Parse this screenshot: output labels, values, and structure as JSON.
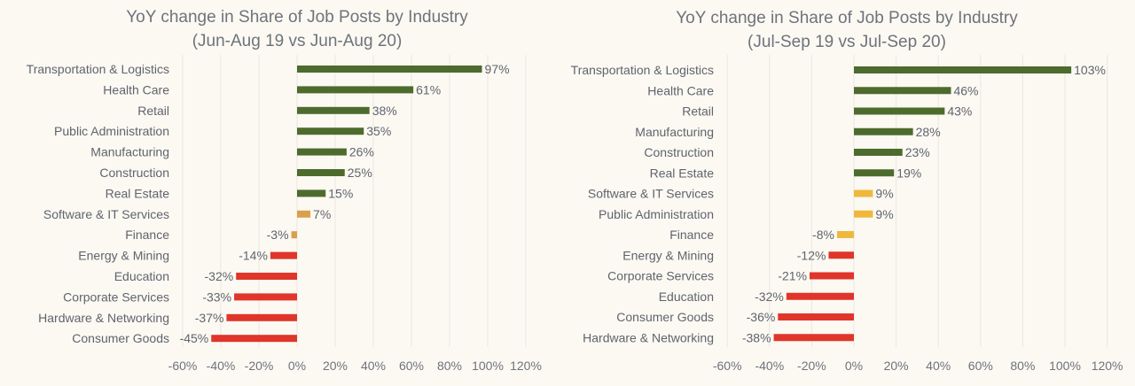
{
  "colors": {
    "positive": "#4e6b2e",
    "neutral_left": "#d9a04c",
    "neutral_right": "#efb83d",
    "negative": "#e0352a",
    "background": "#fcf9f3"
  },
  "chart_data": [
    {
      "type": "bar",
      "orientation": "horizontal",
      "title": "YoY change in Share of Job Posts by Industry",
      "subtitle": "(Jun-Aug 19 vs Jun-Aug 20)",
      "categories": [
        "Transportation & Logistics",
        "Health Care",
        "Retail",
        "Public Administration",
        "Manufacturing",
        "Construction",
        "Real Estate",
        "Software & IT Services",
        "Finance",
        "Energy & Mining",
        "Education",
        "Corporate Services",
        "Hardware & Networking",
        "Consumer Goods"
      ],
      "values": [
        97,
        61,
        38,
        35,
        26,
        25,
        15,
        7,
        -3,
        -14,
        -32,
        -33,
        -37,
        -45
      ],
      "data_labels": [
        "97%",
        "61%",
        "38%",
        "35%",
        "26%",
        "25%",
        "15%",
        "7%",
        "-3%",
        "-14%",
        "-32%",
        "-33%",
        "-37%",
        "-45%"
      ],
      "bar_colors": [
        "positive",
        "positive",
        "positive",
        "positive",
        "positive",
        "positive",
        "positive",
        "neutral_left",
        "neutral_left",
        "negative",
        "negative",
        "negative",
        "negative",
        "negative"
      ],
      "xlim": [
        -60,
        120
      ],
      "xticks": [
        "-60%",
        "-40%",
        "-20%",
        "0%",
        "20%",
        "40%",
        "60%",
        "80%",
        "100%",
        "120%"
      ],
      "grid": true
    },
    {
      "type": "bar",
      "orientation": "horizontal",
      "title": "YoY change in Share of Job Posts by Industry",
      "subtitle": "(Jul-Sep 19 vs Jul-Sep 20)",
      "categories": [
        "Transportation & Logistics",
        "Health Care",
        "Retail",
        "Manufacturing",
        "Construction",
        "Real Estate",
        "Software & IT Services",
        "Public Administration",
        "Finance",
        "Energy & Mining",
        "Corporate Services",
        "Education",
        "Consumer Goods",
        "Hardware & Networking"
      ],
      "values": [
        103,
        46,
        43,
        28,
        23,
        19,
        9,
        9,
        -8,
        -12,
        -21,
        -32,
        -36,
        -38
      ],
      "data_labels": [
        "103%",
        "46%",
        "43%",
        "28%",
        "23%",
        "19%",
        "9%",
        "9%",
        "-8%",
        "-12%",
        "-21%",
        "-32%",
        "-36%",
        "-38%"
      ],
      "bar_colors": [
        "positive",
        "positive",
        "positive",
        "positive",
        "positive",
        "positive",
        "neutral_right",
        "neutral_right",
        "neutral_right",
        "negative",
        "negative",
        "negative",
        "negative",
        "negative"
      ],
      "xlim": [
        -60,
        120
      ],
      "xticks": [
        "-60%",
        "-40%",
        "-20%",
        "0%",
        "20%",
        "40%",
        "60%",
        "80%",
        "100%",
        "120%"
      ],
      "grid": true
    }
  ]
}
